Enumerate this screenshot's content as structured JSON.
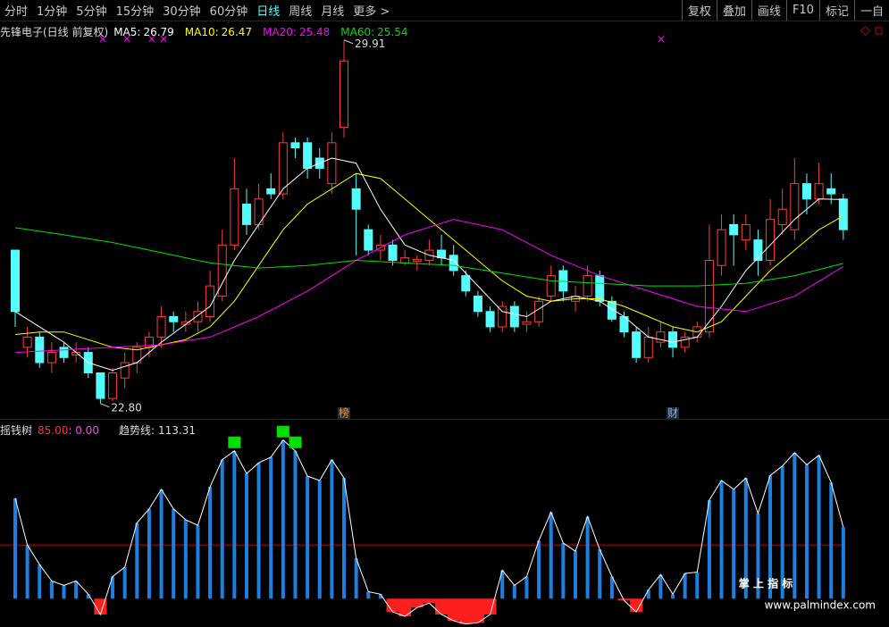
{
  "toolbar": {
    "left": [
      "分时",
      "1分钟",
      "5分钟",
      "15分钟",
      "30分钟",
      "60分钟",
      "日线",
      "周线",
      "月线",
      "更多 >"
    ],
    "active": "日线",
    "right": [
      "复权",
      "叠加",
      "画线",
      "F10",
      "标记",
      "一自"
    ]
  },
  "chart_data": [
    {
      "type": "candlestick",
      "title": "先锋电子(日线 前复权)",
      "open": [
        25.8,
        23.9,
        24.1,
        23.6,
        23.9,
        23.75,
        23.8,
        23.4,
        22.9,
        23.3,
        23.6,
        23.9,
        24.1,
        24.5,
        24.35,
        24.4,
        24.5,
        24.9,
        25.9,
        26.7,
        26.3,
        27.0,
        26.9,
        27.9,
        27.9,
        27.6,
        27.1,
        28.2,
        27.0,
        26.2,
        25.8,
        25.9,
        25.55,
        25.58,
        25.6,
        25.8,
        25.7,
        25.3,
        24.9,
        24.6,
        24.3,
        24.7,
        24.35,
        24.4,
        24.9,
        25.4,
        24.8,
        24.9,
        25.3,
        24.8,
        24.5,
        24.2,
        23.7,
        24.0,
        24.2,
        23.9,
        24.1,
        24.2,
        25.5,
        26.3,
        26.0,
        26.0,
        25.6,
        26.3,
        26.2,
        27.1,
        26.8,
        27.0,
        26.8
      ],
      "high": [
        25.8,
        24.3,
        24.2,
        24.0,
        24.0,
        24.0,
        23.9,
        23.4,
        23.5,
        23.8,
        24.0,
        24.2,
        24.7,
        24.6,
        24.6,
        24.8,
        25.4,
        26.2,
        27.6,
        27.0,
        27.1,
        27.3,
        28.1,
        28.0,
        28.0,
        27.8,
        28.1,
        29.91,
        27.3,
        26.3,
        26.1,
        26.0,
        25.8,
        25.7,
        26.0,
        26.1,
        25.9,
        25.4,
        25.0,
        24.7,
        24.8,
        24.8,
        24.6,
        24.9,
        25.5,
        25.5,
        25.1,
        25.5,
        25.4,
        24.9,
        24.6,
        24.3,
        24.3,
        24.4,
        24.3,
        24.2,
        24.4,
        26.3,
        26.5,
        26.5,
        26.5,
        26.2,
        26.8,
        27.0,
        27.6,
        27.3,
        27.5,
        27.3,
        26.9
      ],
      "low": [
        24.3,
        23.7,
        23.5,
        23.4,
        23.6,
        23.6,
        23.3,
        22.8,
        22.85,
        23.1,
        23.4,
        23.7,
        23.9,
        24.2,
        24.2,
        24.2,
        24.4,
        24.8,
        25.8,
        26.1,
        26.2,
        26.8,
        26.8,
        27.6,
        27.2,
        27.2,
        26.9,
        28.0,
        25.7,
        25.7,
        25.6,
        25.5,
        25.5,
        25.4,
        25.5,
        25.5,
        25.3,
        24.9,
        24.5,
        24.2,
        24.2,
        24.2,
        24.2,
        24.3,
        24.8,
        24.8,
        24.6,
        24.8,
        24.7,
        24.4,
        24.1,
        23.6,
        23.6,
        23.9,
        23.7,
        23.8,
        24.0,
        24.1,
        25.3,
        25.5,
        25.8,
        25.3,
        25.5,
        26.1,
        26.0,
        26.5,
        26.7,
        26.7,
        26.0
      ],
      "close": [
        24.6,
        24.1,
        23.6,
        23.8,
        23.7,
        23.8,
        23.4,
        22.9,
        23.4,
        23.6,
        23.9,
        24.1,
        24.5,
        24.4,
        24.4,
        24.6,
        25.1,
        25.9,
        27.0,
        26.3,
        26.8,
        26.9,
        27.9,
        27.8,
        27.4,
        27.4,
        27.9,
        29.5,
        26.6,
        25.8,
        25.9,
        25.6,
        25.65,
        25.62,
        25.8,
        25.65,
        25.4,
        25.0,
        24.6,
        24.3,
        24.7,
        24.3,
        24.4,
        24.8,
        25.3,
        25.0,
        24.9,
        25.3,
        24.8,
        24.45,
        24.2,
        23.7,
        24.1,
        24.2,
        23.9,
        24.1,
        24.3,
        25.6,
        26.2,
        26.1,
        26.3,
        25.6,
        26.4,
        26.6,
        27.1,
        26.8,
        27.1,
        26.9,
        26.2
      ],
      "up_color": "#ff3c3c",
      "down_color": "#54fcfc",
      "ylim": [
        22.57,
        30.08
      ],
      "series": [
        {
          "name": "MA5:",
          "color": "#ffffff",
          "x": [
            0,
            2,
            4,
            6,
            8,
            10,
            12,
            14,
            16,
            18,
            20,
            22,
            24,
            26,
            28,
            30,
            32,
            34,
            36,
            38,
            40,
            42,
            44,
            46,
            48,
            50,
            52,
            54,
            56,
            58,
            60,
            62,
            64,
            66,
            68
          ],
          "values": [
            24.6,
            24.3,
            24.0,
            23.6,
            23.45,
            23.6,
            24.0,
            24.35,
            24.7,
            25.6,
            26.3,
            27.0,
            27.4,
            27.6,
            27.5,
            26.6,
            25.9,
            25.7,
            25.6,
            25.1,
            24.6,
            24.5,
            24.8,
            24.9,
            24.8,
            24.5,
            24.1,
            24.0,
            24.1,
            24.7,
            25.4,
            25.9,
            26.4,
            26.8,
            26.79
          ]
        },
        {
          "name": "MA10:",
          "color": "#ffff00",
          "x": [
            0,
            2,
            4,
            6,
            8,
            10,
            12,
            14,
            16,
            18,
            20,
            22,
            24,
            26,
            28,
            30,
            32,
            34,
            36,
            38,
            40,
            42,
            44,
            46,
            48,
            50,
            52,
            54,
            56,
            58,
            60,
            62,
            64,
            66,
            68
          ],
          "values": [
            24.15,
            24.2,
            24.2,
            24.05,
            23.9,
            23.85,
            23.95,
            24.05,
            24.3,
            24.8,
            25.5,
            26.2,
            26.7,
            27.0,
            27.3,
            27.2,
            26.8,
            26.4,
            26.0,
            25.6,
            25.2,
            24.9,
            24.8,
            24.85,
            24.85,
            24.7,
            24.5,
            24.3,
            24.2,
            24.4,
            24.9,
            25.4,
            25.8,
            26.2,
            26.47
          ]
        },
        {
          "name": "MA20:",
          "color": "#ff00ff",
          "x": [
            0,
            4,
            8,
            12,
            16,
            20,
            24,
            28,
            32,
            36,
            40,
            44,
            48,
            52,
            56,
            60,
            64,
            68
          ],
          "values": [
            23.8,
            23.85,
            23.9,
            23.95,
            24.1,
            24.5,
            25.0,
            25.6,
            26.1,
            26.4,
            26.2,
            25.7,
            25.3,
            25.0,
            24.7,
            24.6,
            24.9,
            25.48
          ]
        },
        {
          "name": "MA60:",
          "color": "#00e000",
          "x": [
            0,
            4,
            8,
            12,
            16,
            20,
            24,
            28,
            32,
            36,
            40,
            44,
            48,
            52,
            56,
            60,
            64,
            68
          ],
          "values": [
            26.24,
            26.1,
            25.95,
            25.75,
            25.55,
            25.45,
            25.5,
            25.6,
            25.55,
            25.5,
            25.35,
            25.2,
            25.15,
            25.1,
            25.1,
            25.15,
            25.3,
            25.54
          ]
        }
      ],
      "annotations": [
        {
          "x": 27,
          "value": 29.91
        },
        {
          "x": 7,
          "value": 22.8,
          "label": "22.80"
        }
      ],
      "events": [
        {
          "x": 27,
          "label": "榜"
        },
        {
          "x": 54,
          "label": "财"
        }
      ]
    },
    {
      "type": "bar",
      "title": "摇钱树",
      "reference_line": {
        "value": 85,
        "label": "85.00"
      },
      "zero_line": {
        "value": 0,
        "label": ": 0.00"
      },
      "series": [
        {
          "name": "趋势线:",
          "color": "#ffffff",
          "bar_color": "#1f7fe0",
          "negative_color": "#ff1e1e",
          "values": [
            159,
            85,
            54,
            28,
            21,
            28,
            7,
            -25,
            35,
            50,
            120,
            142,
            173,
            142,
            125,
            116,
            177,
            220,
            234,
            198,
            215,
            224,
            251,
            234,
            194,
            187,
            220,
            191,
            64,
            11,
            7,
            -21,
            -28,
            -14,
            -7,
            -25,
            -35,
            -40,
            -38,
            -25,
            45,
            21,
            35,
            92,
            137,
            88,
            75,
            130,
            78,
            35,
            -3,
            -21,
            14,
            38,
            7,
            40,
            42,
            156,
            187,
            173,
            191,
            135,
            195,
            210,
            231,
            212,
            227,
            184,
            113.31
          ]
        }
      ],
      "signals": {
        "x": [
          18,
          22,
          23
        ],
        "color": "#00e000"
      },
      "ylim": [
        -42,
        269
      ]
    }
  ],
  "watermark": {
    "title": "掌 上 指 标",
    "url": "www.palmindex.com"
  }
}
